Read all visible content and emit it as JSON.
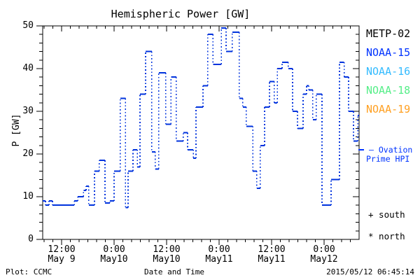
{
  "title": "Hemispheric Power [GW]",
  "axes": {
    "ylabel": "P [GW]",
    "xlabel": "Date and Time",
    "ylim": [
      0,
      50
    ],
    "y_major_ticks": [
      0,
      10,
      20,
      30,
      40,
      50
    ],
    "y_minor_step": 2,
    "x_range_hours": [
      7.68,
      80
    ],
    "x_minor_step_hours": 2,
    "x_major_ticks": [
      {
        "hour": 12,
        "time": "12:00",
        "date": "May 9"
      },
      {
        "hour": 24,
        "time": "0:00",
        "date": "May10"
      },
      {
        "hour": 36,
        "time": "12:00",
        "date": "May10"
      },
      {
        "hour": 48,
        "time": "0:00",
        "date": "May11"
      },
      {
        "hour": 60,
        "time": "12:00",
        "date": "May11"
      },
      {
        "hour": 72,
        "time": "0:00",
        "date": "May12"
      }
    ]
  },
  "legend": [
    {
      "label": "METP-02",
      "color": "#000000"
    },
    {
      "label": "NOAA-15",
      "color": "#0033ff"
    },
    {
      "label": "NOAA-16",
      "color": "#33bbff"
    },
    {
      "label": "NOAA-18",
      "color": "#55ee88"
    },
    {
      "label": "NOAA-19",
      "color": "#ffa022"
    }
  ],
  "annotations": {
    "ovation_line1": "— Ovation",
    "ovation_line2": "Prime HPI",
    "south_marker": "+ south",
    "north_marker": "* north",
    "plot_credit": "Plot: CCMC",
    "timestamp": "2015/05/12 06:45:14"
  },
  "chart_data": {
    "type": "line",
    "style": "step-histogram, solid horizontals with dotted vertical connectors",
    "line_color": "#0033dd",
    "title": "Hemispheric Power [GW]",
    "xlabel": "Date and Time",
    "ylabel": "P [GW]",
    "ylim": [
      0,
      50
    ],
    "grid": false,
    "legend_position": "right outside",
    "x_unit": "hours since 2015-05-09 00:00 UT",
    "x_end": 80.0,
    "points": [
      [
        7.7,
        9
      ],
      [
        8.3,
        8
      ],
      [
        9.1,
        9
      ],
      [
        9.9,
        8
      ],
      [
        14.9,
        9
      ],
      [
        15.7,
        10
      ],
      [
        17.0,
        11.5
      ],
      [
        17.6,
        12.5
      ],
      [
        18.2,
        8
      ],
      [
        19.5,
        16
      ],
      [
        20.6,
        18.5
      ],
      [
        21.9,
        8.5
      ],
      [
        23.0,
        9
      ],
      [
        24.0,
        16
      ],
      [
        25.4,
        33
      ],
      [
        26.6,
        7.5
      ],
      [
        27.2,
        16
      ],
      [
        28.3,
        21
      ],
      [
        29.3,
        17
      ],
      [
        29.9,
        34
      ],
      [
        31.2,
        44
      ],
      [
        32.6,
        20.5
      ],
      [
        33.4,
        16.5
      ],
      [
        34.2,
        39
      ],
      [
        35.8,
        27
      ],
      [
        37.0,
        38
      ],
      [
        38.2,
        23
      ],
      [
        39.8,
        25
      ],
      [
        40.8,
        21
      ],
      [
        42.1,
        19
      ],
      [
        42.7,
        31
      ],
      [
        44.3,
        36
      ],
      [
        45.4,
        48
      ],
      [
        46.6,
        41
      ],
      [
        48.5,
        49.5
      ],
      [
        49.6,
        44
      ],
      [
        51.0,
        48.5
      ],
      [
        52.6,
        33
      ],
      [
        53.4,
        31
      ],
      [
        54.2,
        26.5
      ],
      [
        55.7,
        16
      ],
      [
        56.6,
        12
      ],
      [
        57.4,
        22
      ],
      [
        58.4,
        31
      ],
      [
        59.5,
        37
      ],
      [
        60.6,
        32
      ],
      [
        61.3,
        40
      ],
      [
        62.4,
        41.5
      ],
      [
        63.8,
        40
      ],
      [
        64.8,
        30
      ],
      [
        65.9,
        26
      ],
      [
        67.2,
        34
      ],
      [
        68.0,
        36
      ],
      [
        68.5,
        35
      ],
      [
        69.4,
        28
      ],
      [
        70.2,
        34
      ],
      [
        71.5,
        8
      ],
      [
        73.6,
        14
      ],
      [
        75.5,
        41.5
      ],
      [
        76.6,
        38
      ],
      [
        77.6,
        30
      ],
      [
        78.7,
        23
      ],
      [
        79.7,
        29
      ]
    ]
  }
}
